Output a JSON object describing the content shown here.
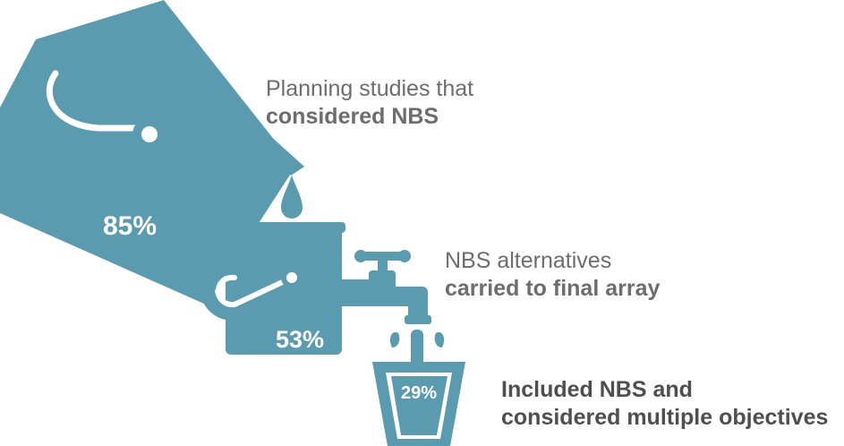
{
  "colors": {
    "accent": "#5b9bb0",
    "text": "#6d6d6d",
    "text_bold": "#4f4f4f"
  },
  "steps": [
    {
      "percent": "85%",
      "label_line1": "Planning studies that",
      "label_line2": "considered NBS",
      "icon": "large-bucket-icon"
    },
    {
      "percent": "53%",
      "label_line1": "NBS alternatives",
      "label_line2": "carried to final array",
      "icon": "small-bucket-icon"
    },
    {
      "percent": "29%",
      "label_line1": "Included NBS and",
      "label_line2": "considered multiple objectives",
      "icon": "glass-icon"
    }
  ]
}
